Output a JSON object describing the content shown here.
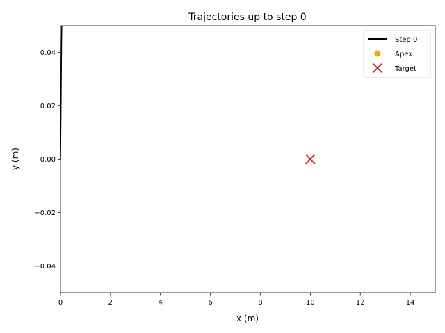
{
  "chart_data": {
    "type": "line",
    "title": "Trajectories up to step 0",
    "xlabel": "x (m)",
    "ylabel": "y (m)",
    "xlim": [
      0,
      15
    ],
    "ylim": [
      -0.05,
      0.05
    ],
    "xticks": [
      0,
      2,
      4,
      6,
      8,
      10,
      12,
      14
    ],
    "xtick_labels": [
      "0",
      "2",
      "4",
      "6",
      "8",
      "10",
      "12",
      "14"
    ],
    "yticks": [
      -0.04,
      -0.02,
      0.0,
      0.02,
      0.04
    ],
    "ytick_labels": [
      "−0.04",
      "−0.02",
      "0.00",
      "0.02",
      "0.04"
    ],
    "grid": false,
    "legend_position": "top-right",
    "series": [
      {
        "name": "Step 0",
        "kind": "line",
        "color": "#000000",
        "x": [
          0.0,
          0.02,
          0.04,
          0.05
        ],
        "y": [
          0.0,
          0.02,
          0.042,
          0.05
        ]
      },
      {
        "name": "Apex",
        "kind": "scatter",
        "color": "#ffa500",
        "x": [],
        "y": []
      },
      {
        "name": "Target",
        "kind": "scatter-x",
        "color": "#ff0000",
        "x": [
          10
        ],
        "y": [
          0.0
        ]
      }
    ]
  }
}
